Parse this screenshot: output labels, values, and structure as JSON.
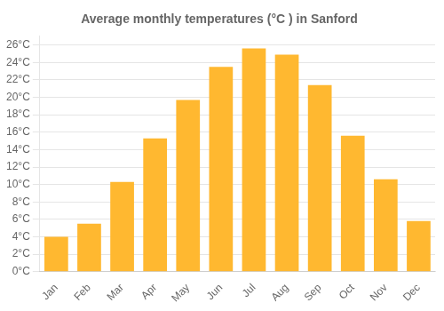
{
  "chart_data": {
    "type": "bar",
    "title": "Average monthly temperatures (°C ) in Sanford",
    "categories": [
      "Jan",
      "Feb",
      "Mar",
      "Apr",
      "May",
      "Jun",
      "Jul",
      "Aug",
      "Sep",
      "Oct",
      "Nov",
      "Dec"
    ],
    "values": [
      4.0,
      5.5,
      10.3,
      15.3,
      19.7,
      23.5,
      25.6,
      24.9,
      21.4,
      15.6,
      10.6,
      5.8
    ],
    "color": "#FFB830",
    "ylim": [
      0,
      27
    ],
    "yticks": [
      {
        "value": 0,
        "label": "0°C"
      },
      {
        "value": 2,
        "label": "2°C"
      },
      {
        "value": 4,
        "label": "4°C"
      },
      {
        "value": 6,
        "label": "6°C"
      },
      {
        "value": 8,
        "label": "8°C"
      },
      {
        "value": 10,
        "label": "10°C"
      },
      {
        "value": 12,
        "label": "12°C"
      },
      {
        "value": 14,
        "label": "14°C"
      },
      {
        "value": 16,
        "label": "16°C"
      },
      {
        "value": 18,
        "label": "18°C"
      },
      {
        "value": 20,
        "label": "20°C"
      },
      {
        "value": 22,
        "label": "22°C"
      },
      {
        "value": 24,
        "label": "24°C"
      },
      {
        "value": 26,
        "label": "26°C"
      }
    ],
    "grid": true
  }
}
